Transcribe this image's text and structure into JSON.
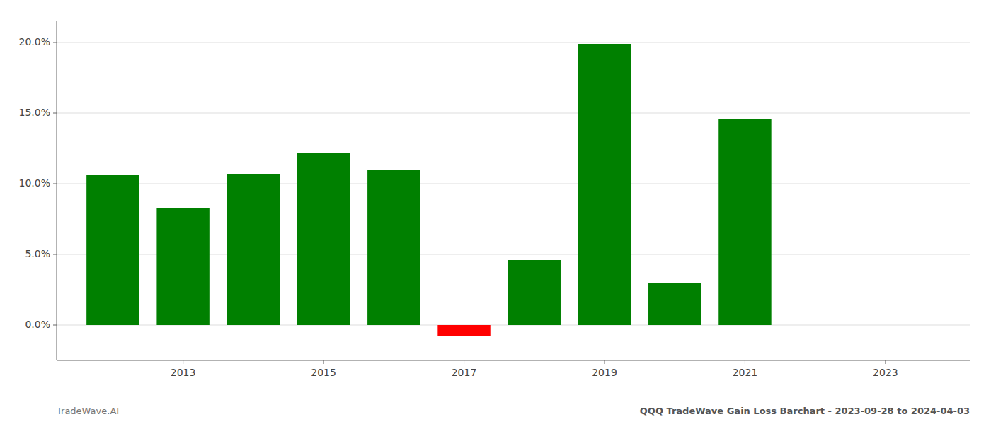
{
  "chart_data": {
    "type": "bar",
    "title": "QQQ TradeWave Gain Loss Barchart - 2023-09-28 to 2024-04-03",
    "annotations": [
      {
        "text": "TradeWave.AI"
      }
    ],
    "x": [
      2012,
      2013,
      2014,
      2015,
      2016,
      2017,
      2018,
      2019,
      2020,
      2021,
      2022
    ],
    "values": [
      0.106,
      0.083,
      0.107,
      0.122,
      0.11,
      -0.008,
      0.046,
      0.199,
      0.03,
      0.146,
      0.0
    ],
    "colors": [
      "#008000",
      "#008000",
      "#008000",
      "#008000",
      "#008000",
      "#ff0000",
      "#008000",
      "#008000",
      "#008000",
      "#008000",
      "#008000"
    ],
    "xlim": [
      2011.2,
      2024.2
    ],
    "xticks": [
      2013,
      2015,
      2017,
      2019,
      2021,
      2023
    ],
    "ylim": [
      -0.025,
      0.215
    ],
    "yticks": [
      {
        "value": 0.0,
        "label": "0.0%"
      },
      {
        "value": 0.05,
        "label": "5.0%"
      },
      {
        "value": 0.1,
        "label": "10.0%"
      },
      {
        "value": 0.15,
        "label": "15.0%"
      },
      {
        "value": 0.2,
        "label": "20.0%"
      }
    ],
    "grid": true
  }
}
